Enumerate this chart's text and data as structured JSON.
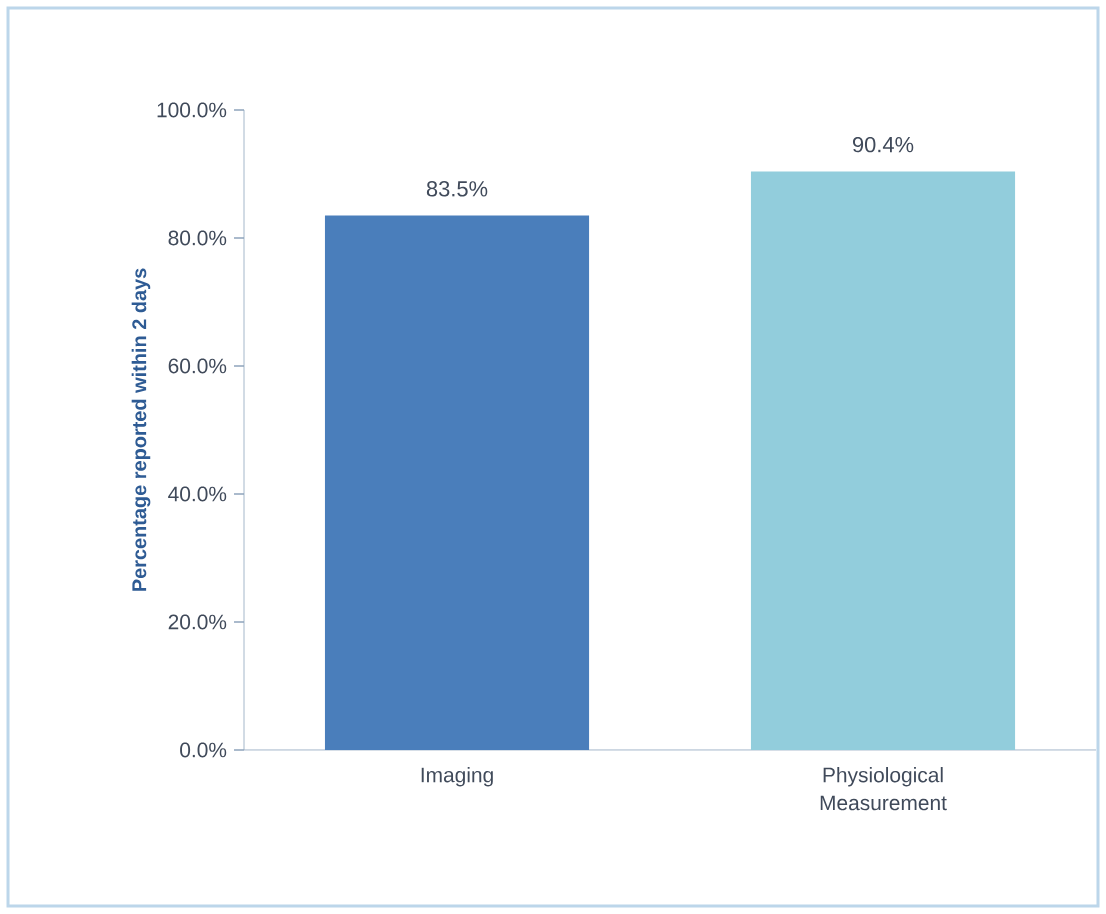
{
  "chart_data": {
    "type": "bar",
    "ylabel": "Percentage reported within 2 days",
    "categories": [
      "Imaging",
      "Physiological Measurement"
    ],
    "values": [
      83.5,
      90.4
    ],
    "colors": [
      "#4a7ebb",
      "#92cddc"
    ],
    "value_labels": [
      "83.5%",
      "90.4%"
    ],
    "ylim": [
      0,
      100
    ],
    "yticks": [
      {
        "value": 0,
        "label": "0.0%"
      },
      {
        "value": 20,
        "label": "20.0%"
      },
      {
        "value": 40,
        "label": "40.0%"
      },
      {
        "value": 60,
        "label": "60.0%"
      },
      {
        "value": 80,
        "label": "80.0%"
      },
      {
        "value": 100,
        "label": "100.0%"
      }
    ],
    "grid": false
  }
}
